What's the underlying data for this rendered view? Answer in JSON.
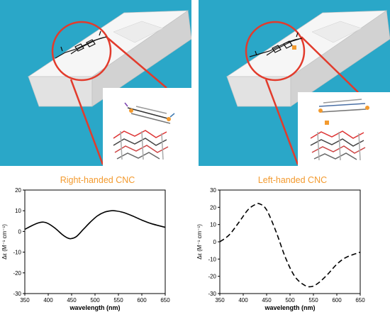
{
  "colors": {
    "background_blue": "#2aa7c8",
    "accent_orange": "#f39a2e",
    "highlight_red": "#e23b2c",
    "cnc_block": "#f2f2f2"
  },
  "chart_data": [
    {
      "type": "line",
      "title": "Right-handed CNC",
      "xlabel": "wavelength (nm)",
      "ylabel": "Δε (M⁻¹ cm⁻¹)",
      "xlim": [
        350,
        650
      ],
      "ylim": [
        -30,
        20
      ],
      "xticks": [
        "350",
        "400",
        "450",
        "500",
        "550",
        "600",
        "650"
      ],
      "yticks": [
        "-30",
        "-20",
        "-10",
        "0",
        "10",
        "20"
      ],
      "line_style": "solid",
      "x": [
        350,
        365,
        380,
        390,
        400,
        415,
        430,
        440,
        448,
        460,
        475,
        490,
        505,
        520,
        535,
        545,
        560,
        580,
        600,
        620,
        650
      ],
      "y": [
        1,
        2.8,
        4.2,
        4.5,
        3.8,
        1.5,
        -1.5,
        -3,
        -3.5,
        -2.5,
        1,
        4.5,
        7.5,
        9.3,
        10,
        9.9,
        9.2,
        7.5,
        5.5,
        3.8,
        2
      ]
    },
    {
      "type": "line",
      "title": "Left-handed CNC",
      "xlabel": "wavelength (nm)",
      "ylabel": "Δε (M⁻¹ cm⁻¹)",
      "xlim": [
        350,
        650
      ],
      "ylim": [
        -30,
        30
      ],
      "xticks": [
        "350",
        "400",
        "450",
        "500",
        "550",
        "600",
        "650"
      ],
      "yticks": [
        "-30",
        "-20",
        "-10",
        "0",
        "10",
        "20",
        "30"
      ],
      "line_style": "dashed",
      "x": [
        350,
        370,
        390,
        410,
        425,
        435,
        450,
        470,
        490,
        510,
        530,
        545,
        560,
        580,
        600,
        620,
        650
      ],
      "y": [
        0,
        4,
        11,
        18.5,
        21.5,
        22,
        18.5,
        6,
        -9,
        -20,
        -25,
        -26,
        -24,
        -19,
        -13,
        -9,
        -6
      ]
    }
  ]
}
